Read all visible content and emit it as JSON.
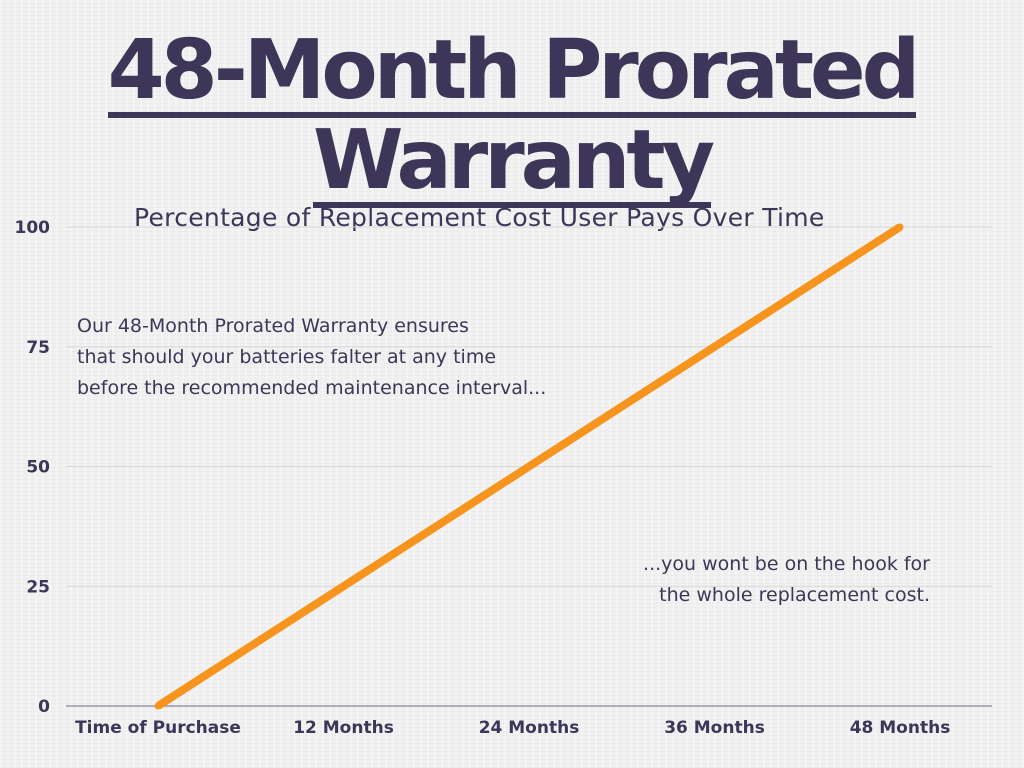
{
  "title_lines": [
    "48-Month Prorated",
    "Warranty"
  ],
  "subtitle": "Percentage of Replacement Cost User Pays Over Time",
  "annotations": {
    "first": [
      "Our 48-Month Prorated Warranty ensures",
      "that should your batteries falter at any time",
      "before the recommended maintenance interval..."
    ],
    "second": [
      "...you wont be on the hook for",
      "the whole replacement cost."
    ]
  },
  "colors": {
    "line": "#f7941d",
    "text": "#3d3658",
    "gridline": "#d8d8dc",
    "axis": "#9a96b0"
  },
  "chart_data": {
    "type": "line",
    "title": "48-Month Prorated Warranty",
    "subtitle": "Percentage of Replacement Cost User Pays Over Time",
    "categories": [
      "Time of Purchase",
      "12 Months",
      "24 Months",
      "36 Months",
      "48 Months"
    ],
    "series": [
      {
        "values": [
          0,
          25,
          50,
          75,
          100
        ]
      }
    ],
    "y_ticks": [
      0,
      25,
      50,
      75,
      100
    ],
    "ylim": [
      0,
      100
    ],
    "xlabel": "",
    "ylabel": "",
    "grid": true,
    "legend": "none"
  }
}
